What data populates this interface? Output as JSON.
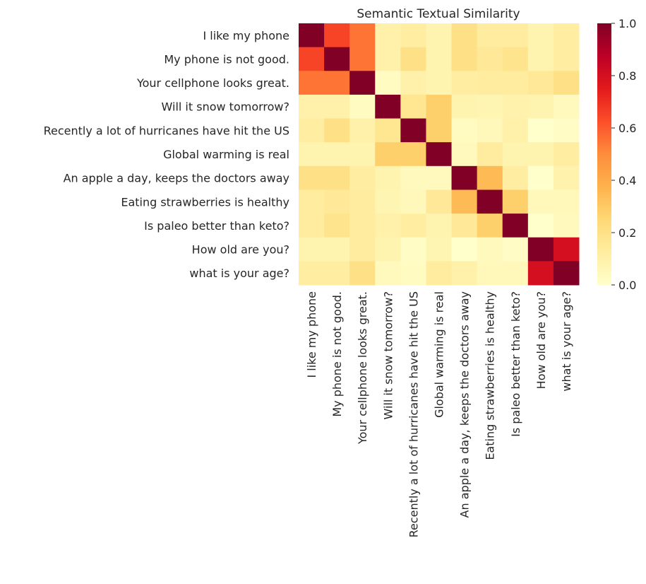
{
  "chart_data": {
    "type": "heatmap",
    "title": "Semantic Textual Similarity",
    "labels": [
      "I like my phone",
      "My phone is not good.",
      "Your cellphone looks great.",
      "Will it snow tomorrow?",
      "Recently a lot of hurricanes have hit the US",
      "Global warming is real",
      "An apple a day, keeps the doctors away",
      "Eating strawberries is healthy",
      "Is paleo better than keto?",
      "How old are you?",
      "what is your age?"
    ],
    "values": [
      [
        1.0,
        0.65,
        0.55,
        0.1,
        0.12,
        0.08,
        0.2,
        0.13,
        0.13,
        0.08,
        0.12
      ],
      [
        0.65,
        1.0,
        0.55,
        0.1,
        0.2,
        0.08,
        0.2,
        0.15,
        0.18,
        0.08,
        0.12
      ],
      [
        0.55,
        0.55,
        1.0,
        0.03,
        0.1,
        0.08,
        0.12,
        0.13,
        0.13,
        0.15,
        0.2
      ],
      [
        0.1,
        0.1,
        0.03,
        1.0,
        0.17,
        0.28,
        0.08,
        0.07,
        0.09,
        0.08,
        0.04
      ],
      [
        0.12,
        0.2,
        0.1,
        0.17,
        1.0,
        0.28,
        0.03,
        0.05,
        0.1,
        0.0,
        0.02
      ],
      [
        0.08,
        0.08,
        0.08,
        0.28,
        0.28,
        1.0,
        0.04,
        0.13,
        0.08,
        0.08,
        0.12
      ],
      [
        0.2,
        0.2,
        0.12,
        0.08,
        0.04,
        0.04,
        1.0,
        0.35,
        0.12,
        0.0,
        0.09
      ],
      [
        0.13,
        0.15,
        0.13,
        0.07,
        0.05,
        0.15,
        0.35,
        1.0,
        0.28,
        0.05,
        0.05
      ],
      [
        0.13,
        0.18,
        0.13,
        0.1,
        0.12,
        0.08,
        0.15,
        0.28,
        1.0,
        0.0,
        0.04
      ],
      [
        0.08,
        0.08,
        0.13,
        0.08,
        0.02,
        0.07,
        0.0,
        0.04,
        0.02,
        1.0,
        0.8
      ],
      [
        0.12,
        0.12,
        0.2,
        0.04,
        0.03,
        0.13,
        0.1,
        0.05,
        0.05,
        0.8,
        1.0
      ]
    ],
    "colormap": "YlOrRd",
    "vmin": 0.0,
    "vmax": 1.0,
    "colorbar_ticks": [
      "0.0",
      "0.2",
      "0.4",
      "0.6",
      "0.8",
      "1.0"
    ],
    "colorbar_tick_values": [
      0,
      0.2,
      0.4,
      0.6,
      0.8,
      1.0
    ],
    "colormap_stops": [
      "#ffffcc",
      "#ffeda0",
      "#fed976",
      "#feb24c",
      "#fd8d3c",
      "#fc4e2a",
      "#e31a1c",
      "#bd0026",
      "#800026"
    ]
  }
}
